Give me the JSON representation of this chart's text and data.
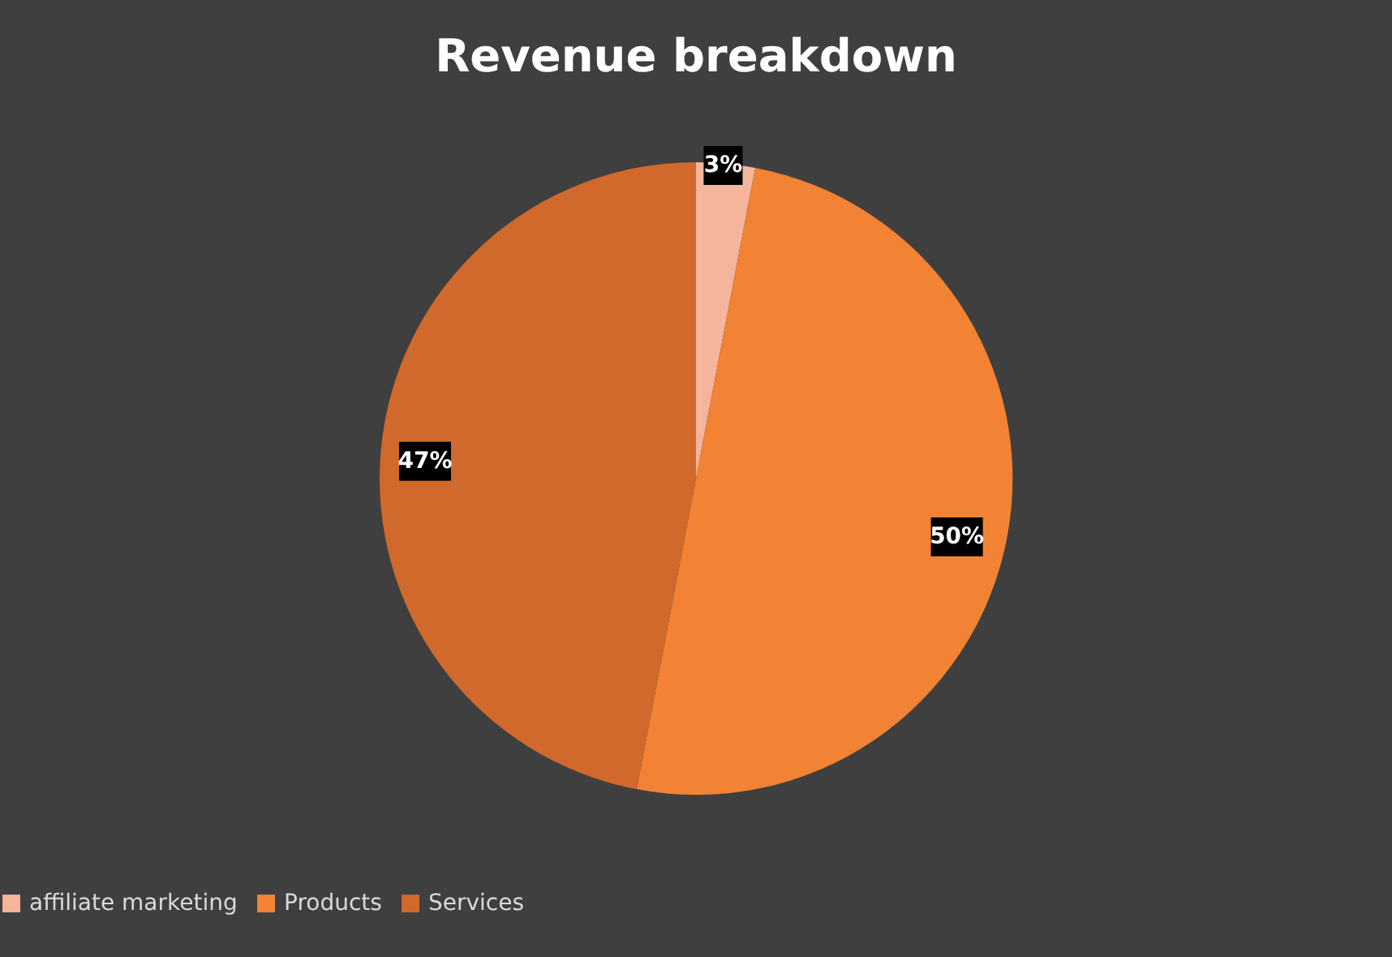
{
  "chart_data": {
    "type": "pie",
    "title": "Revenue breakdown",
    "categories": [
      "affiliate marketing",
      "Products",
      "Services"
    ],
    "values": [
      3,
      50,
      47
    ],
    "colors": [
      "#f5b49c",
      "#f28234",
      "#d2692c"
    ],
    "value_labels": [
      "3%",
      "50%",
      "47%"
    ],
    "legend": "bottom"
  }
}
